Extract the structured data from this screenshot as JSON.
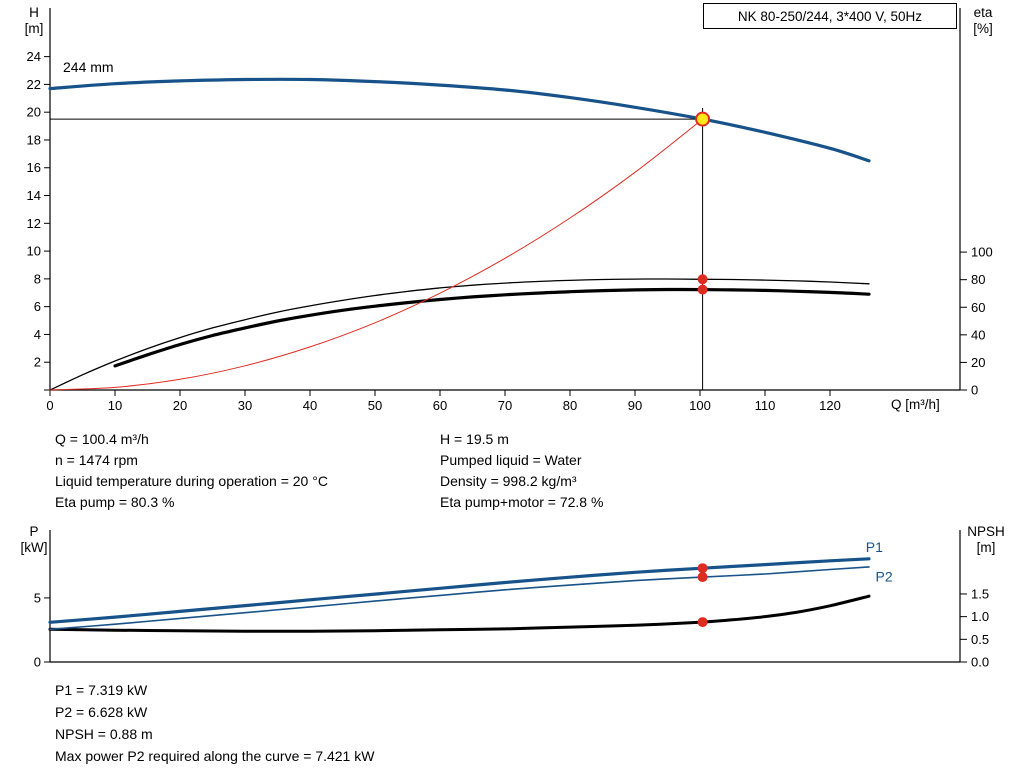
{
  "axis_labels": {
    "h_symbol": "H",
    "h_unit": "[m]",
    "eta_symbol": "eta",
    "eta_unit": "[%]",
    "q": "Q [m³/h]",
    "p_symbol": "P",
    "p_unit": "[kW]",
    "npsh_symbol": "NPSH",
    "npsh_unit": "[m]"
  },
  "colors": {
    "curve_blue": "#17538a",
    "marker_red": "#e02b20",
    "marker_yellow": "#ffe81a",
    "axis_black": "#000000"
  },
  "info_top": {
    "left": [
      "Q = 100.4 m³/h",
      "n = 1474 rpm",
      "Liquid temperature during operation = 20 °C",
      "Eta pump = 80.3 %"
    ],
    "right": [
      "H = 19.5 m",
      "Pumped liquid = Water",
      "Density = 998.2 kg/m³",
      "Eta pump+motor = 72.8 %"
    ]
  },
  "info_bottom": [
    "P1 = 7.319 kW",
    "P2 = 6.628 kW",
    "NPSH = 0.88 m",
    "Max power P2 required along the curve = 7.421 kW"
  ],
  "chart_data": [
    {
      "name": "head-capacity-chart",
      "type": "line",
      "title": "NK 80-250/244, 3*400 V, 50Hz",
      "xlabel": "Q [m³/h]",
      "ylabel_left": "H [m]",
      "ylabel_right": "eta [%]",
      "xlim": [
        0,
        140
      ],
      "ylim_left": [
        0,
        27.5
      ],
      "ylim_right": [
        0,
        277
      ],
      "x_ticks": [
        {
          "v": 0,
          "t": "0"
        },
        {
          "v": 10,
          "t": "10"
        },
        {
          "v": 20,
          "t": "20"
        },
        {
          "v": 30,
          "t": "30"
        },
        {
          "v": 40,
          "t": "40"
        },
        {
          "v": 50,
          "t": "50"
        },
        {
          "v": 60,
          "t": "60"
        },
        {
          "v": 70,
          "t": "70"
        },
        {
          "v": 80,
          "t": "80"
        },
        {
          "v": 90,
          "t": "90"
        },
        {
          "v": 100,
          "t": "100"
        },
        {
          "v": 110,
          "t": "110"
        },
        {
          "v": 120,
          "t": "120"
        }
      ],
      "y_left_ticks": [
        {
          "v": 0,
          "t": ""
        },
        {
          "v": 2,
          "t": "2"
        },
        {
          "v": 4,
          "t": "4"
        },
        {
          "v": 6,
          "t": "6"
        },
        {
          "v": 8,
          "t": "8"
        },
        {
          "v": 10,
          "t": "10"
        },
        {
          "v": 12,
          "t": "12"
        },
        {
          "v": 14,
          "t": "14"
        },
        {
          "v": 16,
          "t": "16"
        },
        {
          "v": 18,
          "t": "18"
        },
        {
          "v": 20,
          "t": "20"
        },
        {
          "v": 22,
          "t": "22"
        },
        {
          "v": 24,
          "t": "24"
        }
      ],
      "y_right_ticks": [
        {
          "v": 0,
          "t": "0"
        },
        {
          "v": 20,
          "t": "20"
        },
        {
          "v": 40,
          "t": "40"
        },
        {
          "v": 60,
          "t": "60"
        },
        {
          "v": 80,
          "t": "80"
        },
        {
          "v": 100,
          "t": "100"
        }
      ],
      "series": [
        {
          "name": "eta-pump",
          "axis": "right",
          "color": "#000000",
          "width": 1.3,
          "points": [
            [
              0,
              0
            ],
            [
              5,
              11
            ],
            [
              10,
              21
            ],
            [
              15,
              30
            ],
            [
              20,
              38
            ],
            [
              25,
              45
            ],
            [
              30,
              51
            ],
            [
              35,
              56.5
            ],
            [
              40,
              61
            ],
            [
              45,
              65
            ],
            [
              50,
              68.5
            ],
            [
              55,
              71.5
            ],
            [
              60,
              74
            ],
            [
              65,
              76
            ],
            [
              70,
              77.5
            ],
            [
              75,
              78.7
            ],
            [
              80,
              79.5
            ],
            [
              85,
              80.1
            ],
            [
              90,
              80.4
            ],
            [
              95,
              80.5
            ],
            [
              100.4,
              80.3
            ],
            [
              105,
              80.1
            ],
            [
              110,
              79.7
            ],
            [
              115,
              79.1
            ],
            [
              120,
              78.3
            ],
            [
              126,
              77
            ]
          ]
        },
        {
          "name": "eta-pump-motor",
          "axis": "right",
          "color": "#000000",
          "width": 3.2,
          "points": [
            [
              10,
              17.5
            ],
            [
              15,
              25.5
            ],
            [
              20,
              33
            ],
            [
              25,
              39.5
            ],
            [
              30,
              45
            ],
            [
              35,
              50
            ],
            [
              40,
              54.2
            ],
            [
              45,
              57.8
            ],
            [
              50,
              60.8
            ],
            [
              55,
              63.4
            ],
            [
              60,
              65.6
            ],
            [
              65,
              67.5
            ],
            [
              70,
              69
            ],
            [
              75,
              70.3
            ],
            [
              80,
              71.3
            ],
            [
              85,
              72.1
            ],
            [
              90,
              72.6
            ],
            [
              95,
              72.85
            ],
            [
              100.4,
              72.8
            ],
            [
              105,
              72.6
            ],
            [
              110,
              72.2
            ],
            [
              115,
              71.6
            ],
            [
              120,
              70.8
            ],
            [
              126,
              69.5
            ]
          ]
        },
        {
          "name": "system-curve",
          "axis": "left",
          "color": "#e02b20",
          "width": 1,
          "points": [
            [
              0,
              0
            ],
            [
              10,
              0.19
            ],
            [
              20,
              0.77
            ],
            [
              30,
              1.74
            ],
            [
              40,
              3.1
            ],
            [
              50,
              4.84
            ],
            [
              60,
              6.97
            ],
            [
              70,
              9.48
            ],
            [
              80,
              12.38
            ],
            [
              90,
              15.67
            ],
            [
              100.4,
              19.5
            ]
          ]
        },
        {
          "name": "pump-curve-244mm",
          "axis": "left",
          "color": "#17538a",
          "width": 3.2,
          "points": [
            [
              0,
              21.7
            ],
            [
              10,
              22.05
            ],
            [
              20,
              22.25
            ],
            [
              30,
              22.35
            ],
            [
              40,
              22.35
            ],
            [
              50,
              22.2
            ],
            [
              60,
              21.95
            ],
            [
              70,
              21.6
            ],
            [
              80,
              21.05
            ],
            [
              90,
              20.35
            ],
            [
              100.4,
              19.5
            ],
            [
              110,
              18.55
            ],
            [
              120,
              17.4
            ],
            [
              126,
              16.5
            ]
          ]
        }
      ],
      "duty_point": {
        "q_m3h": 100.4,
        "h_m": 19.5,
        "eta_pump_pct": 80.3,
        "eta_pump_motor_pct": 72.8
      },
      "annotations": [
        {
          "type": "hline",
          "axis": "left",
          "y": 19.5,
          "x1": 0,
          "x2": 100.4
        },
        {
          "type": "vline",
          "axis": "left",
          "x": 100.4,
          "y1": 0,
          "y2": 20.3
        },
        {
          "type": "dot",
          "axis": "right",
          "x": 100.4,
          "y": 80.3,
          "r": 5,
          "fill": "#e02b20",
          "name": "eta-pump-duty-dot"
        },
        {
          "type": "dot",
          "axis": "right",
          "x": 100.4,
          "y": 72.8,
          "r": 5,
          "fill": "#e02b20",
          "name": "eta-pump-motor-duty-dot"
        },
        {
          "type": "dot",
          "axis": "left",
          "x": 100.4,
          "y": 19.5,
          "r": 6.5,
          "fill": "#ffe81a",
          "stroke": "#e02b20",
          "sw": 2,
          "name": "duty-point-marker"
        },
        {
          "type": "label",
          "axis": "left",
          "x": 2,
          "y": 22.9,
          "text": "244 mm",
          "color": "#000000",
          "name": "impeller-size-label"
        }
      ]
    },
    {
      "name": "power-npsh-chart",
      "type": "line",
      "ylabel_left": "P [kW]",
      "ylabel_right": "NPSH [m]",
      "xlim": [
        0,
        140
      ],
      "ylim_left": [
        0,
        10.3
      ],
      "ylim_right": [
        0,
        2.91
      ],
      "x_ticks": [],
      "y_left_ticks": [
        {
          "v": 0,
          "t": "0"
        },
        {
          "v": 5,
          "t": "5"
        }
      ],
      "y_right_ticks": [
        {
          "v": 0,
          "t": "0.0"
        },
        {
          "v": 0.5,
          "t": "0.5"
        },
        {
          "v": 1,
          "t": "1.0"
        },
        {
          "v": 1.5,
          "t": "1.5"
        }
      ],
      "series": [
        {
          "name": "npsh",
          "axis": "right",
          "color": "#000000",
          "width": 3,
          "points": [
            [
              0,
              0.72
            ],
            [
              10,
              0.7
            ],
            [
              20,
              0.69
            ],
            [
              30,
              0.68
            ],
            [
              40,
              0.68
            ],
            [
              50,
              0.69
            ],
            [
              60,
              0.71
            ],
            [
              70,
              0.73
            ],
            [
              80,
              0.77
            ],
            [
              90,
              0.81
            ],
            [
              100.4,
              0.88
            ],
            [
              105,
              0.93
            ],
            [
              110,
              1.0
            ],
            [
              115,
              1.1
            ],
            [
              120,
              1.24
            ],
            [
              126,
              1.45
            ]
          ]
        },
        {
          "name": "p2",
          "axis": "left",
          "color": "#17538a",
          "width": 1.6,
          "points": [
            [
              0,
              2.55
            ],
            [
              10,
              2.95
            ],
            [
              20,
              3.4
            ],
            [
              30,
              3.85
            ],
            [
              40,
              4.3
            ],
            [
              50,
              4.75
            ],
            [
              60,
              5.2
            ],
            [
              70,
              5.63
            ],
            [
              80,
              6.0
            ],
            [
              90,
              6.35
            ],
            [
              100.4,
              6.628
            ],
            [
              110,
              6.87
            ],
            [
              120,
              7.22
            ],
            [
              126,
              7.421
            ]
          ]
        },
        {
          "name": "p1",
          "axis": "left",
          "color": "#17538a",
          "width": 3.2,
          "points": [
            [
              0,
              3.1
            ],
            [
              10,
              3.5
            ],
            [
              20,
              3.95
            ],
            [
              30,
              4.4
            ],
            [
              40,
              4.85
            ],
            [
              50,
              5.3
            ],
            [
              60,
              5.75
            ],
            [
              70,
              6.2
            ],
            [
              80,
              6.62
            ],
            [
              90,
              7.0
            ],
            [
              100.4,
              7.319
            ],
            [
              110,
              7.6
            ],
            [
              120,
              7.9
            ],
            [
              126,
              8.05
            ]
          ]
        }
      ],
      "duty_point": {
        "p1_kw": 7.319,
        "p2_kw": 6.628,
        "npsh_m": 0.88
      },
      "annotations": [
        {
          "type": "dot",
          "axis": "left",
          "x": 100.4,
          "y": 7.319,
          "r": 5,
          "fill": "#e02b20",
          "name": "p1-duty-dot"
        },
        {
          "type": "dot",
          "axis": "left",
          "x": 100.4,
          "y": 6.628,
          "r": 5,
          "fill": "#e02b20",
          "name": "p2-duty-dot"
        },
        {
          "type": "dot",
          "axis": "right",
          "x": 100.4,
          "y": 0.88,
          "r": 5,
          "fill": "#e02b20",
          "name": "npsh-duty-dot"
        },
        {
          "type": "label",
          "axis": "left",
          "x": 125.5,
          "y": 8.6,
          "text": "P1",
          "color": "#17538a",
          "name": "p1-curve-label"
        },
        {
          "type": "label",
          "axis": "left",
          "x": 127,
          "y": 6.3,
          "text": "P2",
          "color": "#17538a",
          "name": "p2-curve-label"
        }
      ]
    }
  ]
}
